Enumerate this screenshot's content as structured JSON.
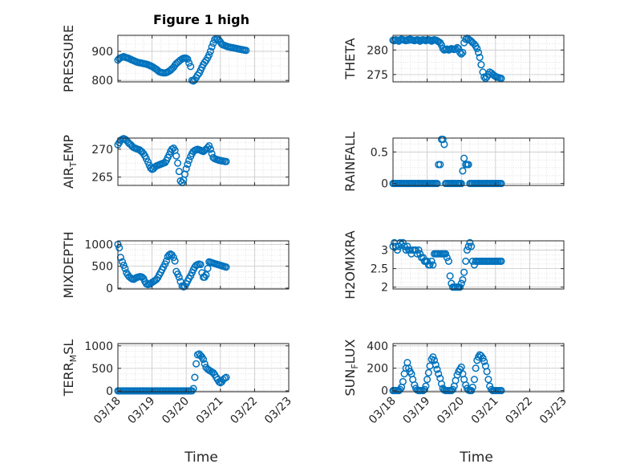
{
  "figure_title": "Figure 1 high",
  "chart_data": [
    {
      "type": "scatter",
      "ylabel": "PRESSURE",
      "ylim": [
        795,
        955
      ],
      "yticks": [
        800,
        900
      ],
      "x": [
        0.0,
        0.04,
        0.08,
        0.13,
        0.17,
        0.21,
        0.25,
        0.29,
        0.33,
        0.38,
        0.42,
        0.46,
        0.5,
        0.54,
        0.58,
        0.63,
        0.67,
        0.71,
        0.75,
        0.79,
        0.83,
        0.88,
        0.92,
        0.96,
        1.0,
        1.04,
        1.08,
        1.13,
        1.17,
        1.21,
        1.25,
        1.29,
        1.33,
        1.38,
        1.42,
        1.46,
        1.5,
        1.54,
        1.58,
        1.63,
        1.67,
        1.71,
        1.75,
        1.79,
        1.83,
        1.88,
        1.92,
        1.96,
        2.0,
        2.04,
        2.08,
        2.13,
        2.17,
        2.21,
        2.25,
        2.29,
        2.33,
        2.38,
        2.42,
        2.46,
        2.5,
        2.54,
        2.58,
        2.63,
        2.67,
        2.71,
        2.75,
        2.79,
        2.83,
        2.88,
        2.92,
        2.96,
        3.0,
        3.04,
        3.08,
        3.13,
        3.17,
        3.21,
        3.25,
        3.29,
        3.33,
        3.38,
        3.42,
        3.46,
        3.5,
        3.54,
        3.58,
        3.63,
        3.67,
        3.71,
        3.75
      ],
      "y": [
        870,
        875,
        878,
        880,
        882,
        880,
        878,
        877,
        875,
        872,
        870,
        868,
        866,
        864,
        862,
        861,
        860,
        859,
        858,
        857,
        856,
        854,
        852,
        850,
        848,
        845,
        842,
        838,
        834,
        830,
        828,
        827,
        826,
        826,
        827,
        829,
        832,
        835,
        840,
        845,
        852,
        858,
        862,
        866,
        870,
        874,
        876,
        877,
        876,
        873,
        860,
        848,
        800,
        798,
        802,
        810,
        818,
        825,
        835,
        845,
        855,
        862,
        868,
        878,
        888,
        900,
        915,
        928,
        940,
        944,
        942,
        938,
        932,
        925,
        922,
        920,
        918,
        916,
        915,
        914,
        913,
        912,
        911,
        910,
        909,
        908,
        907,
        906,
        905,
        904,
        903
      ]
    },
    {
      "type": "scatter",
      "ylabel": "THETA",
      "ylim": [
        273.5,
        283
      ],
      "yticks": [
        275,
        280
      ],
      "x": [
        0.0,
        0.04,
        0.08,
        0.13,
        0.17,
        0.21,
        0.25,
        0.29,
        0.33,
        0.38,
        0.42,
        0.46,
        0.5,
        0.54,
        0.58,
        0.63,
        0.67,
        0.71,
        0.75,
        0.79,
        0.83,
        0.88,
        0.92,
        0.96,
        1.0,
        1.04,
        1.08,
        1.13,
        1.17,
        1.21,
        1.25,
        1.29,
        1.33,
        1.38,
        1.42,
        1.46,
        1.5,
        1.54,
        1.58,
        1.63,
        1.67,
        1.71,
        1.75,
        1.79,
        1.83,
        1.88,
        1.92,
        1.96,
        2.0,
        2.04,
        2.08,
        2.13,
        2.17,
        2.21,
        2.25,
        2.29,
        2.33,
        2.38,
        2.42,
        2.46,
        2.5,
        2.54,
        2.58,
        2.63,
        2.67,
        2.71,
        2.75,
        2.79,
        2.83,
        2.88,
        2.92,
        2.96,
        3.0,
        3.04,
        3.08,
        3.13,
        3.17
      ],
      "y": [
        282,
        281.9,
        282.1,
        282,
        281.8,
        282,
        282.2,
        282.1,
        282,
        281.9,
        282.1,
        282,
        282.2,
        282.1,
        282,
        281.9,
        282,
        282.1,
        282,
        281.8,
        282,
        282.1,
        282,
        281.9,
        282,
        282.1,
        282,
        281.8,
        282,
        282.1,
        282,
        281.9,
        281.7,
        281.5,
        281,
        280.3,
        280,
        280.1,
        280.2,
        280,
        280.1,
        280.3,
        280.2,
        280.1,
        280.2,
        280.5,
        280.3,
        279.5,
        279.2,
        279.5,
        281.5,
        282.2,
        282.4,
        282.2,
        282,
        281.8,
        281.5,
        281.2,
        280.8,
        280.3,
        279.5,
        278.5,
        277,
        275.5,
        274.5,
        274.2,
        274.5,
        275,
        275.5,
        275.3,
        275,
        274.8,
        274.6,
        274.5,
        274.4,
        274.3,
        274.2
      ]
    },
    {
      "type": "scatter",
      "ylabel": "AIR_TEMP",
      "ylim": [
        263.5,
        272
      ],
      "yticks": [
        265,
        270
      ],
      "x": [
        0.0,
        0.04,
        0.08,
        0.13,
        0.17,
        0.21,
        0.25,
        0.29,
        0.33,
        0.38,
        0.42,
        0.46,
        0.5,
        0.54,
        0.58,
        0.63,
        0.67,
        0.71,
        0.75,
        0.79,
        0.83,
        0.88,
        0.92,
        0.96,
        1.0,
        1.04,
        1.08,
        1.13,
        1.17,
        1.21,
        1.25,
        1.29,
        1.33,
        1.38,
        1.42,
        1.46,
        1.5,
        1.54,
        1.58,
        1.63,
        1.67,
        1.71,
        1.75,
        1.79,
        1.83,
        1.88,
        1.92,
        1.96,
        2.0,
        2.04,
        2.08,
        2.13,
        2.17,
        2.21,
        2.25,
        2.29,
        2.33,
        2.38,
        2.42,
        2.46,
        2.5,
        2.54,
        2.58,
        2.63,
        2.67,
        2.71,
        2.75,
        2.79,
        2.83,
        2.88,
        2.92,
        2.96,
        3.0,
        3.04,
        3.08,
        3.13,
        3.17
      ],
      "y": [
        270.8,
        271.2,
        271.6,
        271.8,
        271.9,
        271.8,
        271.6,
        271.3,
        271,
        270.8,
        270.5,
        270.3,
        270.2,
        270.1,
        270,
        269.9,
        269.7,
        269.5,
        269.2,
        268.8,
        268.3,
        267.7,
        267.1,
        266.6,
        266.4,
        266.5,
        266.8,
        267,
        267.1,
        267.2,
        267.3,
        267.4,
        267.5,
        267.6,
        268,
        268.5,
        269,
        269.6,
        270,
        270.2,
        269.8,
        268.8,
        267.5,
        266,
        264.3,
        264,
        264.5,
        265.5,
        266.5,
        267.3,
        268,
        268.7,
        269.2,
        269.6,
        269.8,
        269.9,
        270,
        269.9,
        269.8,
        269.7,
        269.6,
        269.8,
        270,
        270.3,
        270.6,
        270,
        269.2,
        268.5,
        268.3,
        268.2,
        268.1,
        268,
        268,
        267.9,
        267.9,
        267.8,
        267.8
      ]
    },
    {
      "type": "scatter",
      "ylabel": "RAINFALL",
      "ylim": [
        -0.03,
        0.72
      ],
      "yticks": [
        0,
        0.5
      ],
      "x": [
        0.0,
        0.04,
        0.08,
        0.13,
        0.17,
        0.21,
        0.25,
        0.29,
        0.33,
        0.38,
        0.42,
        0.46,
        0.5,
        0.54,
        0.58,
        0.63,
        0.67,
        0.71,
        0.75,
        0.79,
        0.83,
        0.88,
        0.92,
        0.96,
        1.0,
        1.04,
        1.08,
        1.13,
        1.17,
        1.21,
        1.25,
        1.29,
        1.33,
        1.38,
        1.42,
        1.46,
        1.5,
        1.54,
        1.58,
        1.63,
        1.67,
        1.71,
        1.75,
        1.79,
        1.83,
        1.88,
        1.92,
        1.96,
        2.0,
        2.04,
        2.08,
        2.13,
        2.17,
        2.21,
        2.25,
        2.29,
        2.33,
        2.38,
        2.42,
        2.46,
        2.5,
        2.54,
        2.58,
        2.63,
        2.67,
        2.71,
        2.75,
        2.79,
        2.83,
        2.88,
        2.92,
        2.96,
        3.0,
        3.04,
        3.08,
        3.13,
        3.17
      ],
      "y": [
        0,
        0,
        0,
        0,
        0,
        0,
        0,
        0,
        0,
        0,
        0,
        0,
        0,
        0,
        0,
        0,
        0,
        0,
        0,
        0,
        0,
        0,
        0,
        0,
        0,
        0,
        0,
        0,
        0,
        0,
        0,
        0,
        0.3,
        0.3,
        0.7,
        0.7,
        0.62,
        0,
        0,
        0,
        0,
        0,
        0,
        0,
        0,
        0,
        0,
        0,
        0,
        0.2,
        0.4,
        0.3,
        0.3,
        0.3,
        0,
        0,
        0,
        0,
        0,
        0,
        0,
        0,
        0,
        0,
        0,
        0,
        0,
        0,
        0,
        0,
        0,
        0,
        0,
        0,
        0,
        0,
        0
      ]
    },
    {
      "type": "scatter",
      "ylabel": "MIXDEPTH",
      "ylim": [
        -20,
        1080
      ],
      "yticks": [
        0,
        500,
        1000
      ],
      "x": [
        0.0,
        0.04,
        0.08,
        0.13,
        0.17,
        0.21,
        0.25,
        0.29,
        0.33,
        0.38,
        0.42,
        0.46,
        0.5,
        0.54,
        0.58,
        0.63,
        0.67,
        0.71,
        0.75,
        0.79,
        0.83,
        0.88,
        0.92,
        0.96,
        1.0,
        1.04,
        1.08,
        1.13,
        1.17,
        1.21,
        1.25,
        1.29,
        1.33,
        1.38,
        1.42,
        1.46,
        1.5,
        1.54,
        1.58,
        1.63,
        1.67,
        1.71,
        1.75,
        1.79,
        1.83,
        1.88,
        1.92,
        1.96,
        2.0,
        2.04,
        2.08,
        2.13,
        2.17,
        2.21,
        2.25,
        2.29,
        2.33,
        2.38,
        2.42,
        2.46,
        2.5,
        2.54,
        2.58,
        2.63,
        2.67,
        2.71,
        2.75,
        2.79,
        2.83,
        2.88,
        2.92,
        2.96,
        3.0,
        3.04,
        3.08,
        3.13,
        3.17
      ],
      "y": [
        1000,
        920,
        700,
        600,
        520,
        450,
        350,
        300,
        260,
        230,
        210,
        200,
        220,
        240,
        250,
        260,
        260,
        250,
        220,
        150,
        100,
        80,
        90,
        110,
        130,
        150,
        170,
        200,
        240,
        300,
        360,
        420,
        480,
        550,
        620,
        720,
        760,
        780,
        760,
        700,
        620,
        380,
        320,
        250,
        150,
        50,
        30,
        40,
        100,
        160,
        220,
        280,
        350,
        420,
        480,
        520,
        540,
        550,
        540,
        350,
        250,
        250,
        300,
        450,
        600,
        590,
        580,
        570,
        560,
        550,
        540,
        530,
        520,
        510,
        500,
        490,
        480
      ]
    },
    {
      "type": "scatter",
      "ylabel": "H2OMIXRA",
      "ylim": [
        1.95,
        3.25
      ],
      "yticks": [
        2,
        2.5,
        3
      ],
      "x": [
        0.0,
        0.04,
        0.08,
        0.13,
        0.17,
        0.21,
        0.25,
        0.29,
        0.33,
        0.38,
        0.42,
        0.46,
        0.5,
        0.54,
        0.58,
        0.63,
        0.67,
        0.71,
        0.75,
        0.79,
        0.83,
        0.88,
        0.92,
        0.96,
        1.0,
        1.04,
        1.08,
        1.13,
        1.17,
        1.21,
        1.25,
        1.29,
        1.33,
        1.38,
        1.42,
        1.46,
        1.5,
        1.54,
        1.58,
        1.63,
        1.67,
        1.71,
        1.75,
        1.79,
        1.83,
        1.88,
        1.92,
        1.96,
        2.0,
        2.04,
        2.08,
        2.13,
        2.17,
        2.21,
        2.25,
        2.29,
        2.33,
        2.38,
        2.42,
        2.46,
        2.5,
        2.54,
        2.58,
        2.63,
        2.67,
        2.71,
        2.75,
        2.79,
        2.83,
        2.88,
        2.92,
        2.96,
        3.0,
        3.04,
        3.08,
        3.13,
        3.17
      ],
      "y": [
        3.1,
        3.2,
        3.1,
        3.0,
        3.1,
        3.2,
        3.15,
        3.2,
        3.1,
        3.0,
        3.1,
        3.0,
        3.0,
        2.9,
        3.0,
        3.0,
        3.0,
        2.9,
        3.0,
        2.9,
        2.8,
        2.8,
        2.7,
        2.7,
        2.7,
        2.6,
        2.6,
        2.7,
        2.6,
        2.9,
        2.9,
        2.9,
        2.9,
        2.9,
        2.9,
        2.9,
        2.9,
        2.9,
        2.8,
        2.7,
        2.3,
        2.1,
        2.0,
        2.0,
        2.0,
        2.0,
        2.0,
        2.0,
        2.1,
        2.2,
        2.4,
        2.7,
        3.0,
        3.1,
        3.2,
        3.1,
        2.7,
        2.6,
        2.7,
        2.7,
        2.7,
        2.7,
        2.7,
        2.7,
        2.7,
        2.7,
        2.7,
        2.7,
        2.7,
        2.7,
        2.7,
        2.7,
        2.7,
        2.7,
        2.7,
        2.7,
        2.7
      ]
    },
    {
      "type": "scatter",
      "ylabel": "TERR_MSL",
      "ylim": [
        -20,
        1050
      ],
      "yticks": [
        0,
        500,
        1000
      ],
      "x": [
        0.0,
        0.04,
        0.08,
        0.13,
        0.17,
        0.21,
        0.25,
        0.29,
        0.33,
        0.38,
        0.42,
        0.46,
        0.5,
        0.54,
        0.58,
        0.63,
        0.67,
        0.71,
        0.75,
        0.79,
        0.83,
        0.88,
        0.92,
        0.96,
        1.0,
        1.04,
        1.08,
        1.13,
        1.17,
        1.21,
        1.25,
        1.29,
        1.33,
        1.38,
        1.42,
        1.46,
        1.5,
        1.54,
        1.58,
        1.63,
        1.67,
        1.71,
        1.75,
        1.79,
        1.83,
        1.88,
        1.92,
        1.96,
        2.0,
        2.04,
        2.08,
        2.13,
        2.17,
        2.21,
        2.25,
        2.29,
        2.33,
        2.38,
        2.42,
        2.46,
        2.5,
        2.54,
        2.58,
        2.63,
        2.67,
        2.71,
        2.75,
        2.79,
        2.83,
        2.88,
        2.92,
        2.96,
        3.0,
        3.04,
        3.08,
        3.13,
        3.17
      ],
      "y": [
        0,
        0,
        0,
        0,
        0,
        0,
        0,
        0,
        0,
        0,
        0,
        0,
        0,
        0,
        0,
        0,
        0,
        0,
        0,
        0,
        0,
        0,
        0,
        0,
        0,
        0,
        0,
        0,
        0,
        0,
        0,
        0,
        0,
        0,
        0,
        0,
        0,
        0,
        0,
        0,
        0,
        0,
        0,
        0,
        0,
        0,
        0,
        0,
        0,
        0,
        0,
        0,
        0,
        50,
        300,
        600,
        800,
        820,
        780,
        750,
        700,
        600,
        520,
        480,
        460,
        440,
        420,
        400,
        360,
        300,
        250,
        200,
        180,
        200,
        250,
        280,
        300
      ]
    },
    {
      "type": "scatter",
      "ylabel": "SUN_FLUX",
      "ylim": [
        -10,
        420
      ],
      "yticks": [
        0,
        200,
        400
      ],
      "x": [
        0.0,
        0.04,
        0.08,
        0.13,
        0.17,
        0.21,
        0.25,
        0.29,
        0.33,
        0.38,
        0.42,
        0.46,
        0.5,
        0.54,
        0.58,
        0.63,
        0.67,
        0.71,
        0.75,
        0.79,
        0.83,
        0.88,
        0.92,
        0.96,
        1.0,
        1.04,
        1.08,
        1.13,
        1.17,
        1.21,
        1.25,
        1.29,
        1.33,
        1.38,
        1.42,
        1.46,
        1.5,
        1.54,
        1.58,
        1.63,
        1.67,
        1.71,
        1.75,
        1.79,
        1.83,
        1.88,
        1.92,
        1.96,
        2.0,
        2.04,
        2.08,
        2.13,
        2.17,
        2.21,
        2.25,
        2.29,
        2.33,
        2.38,
        2.42,
        2.46,
        2.5,
        2.54,
        2.58,
        2.63,
        2.67,
        2.71,
        2.75,
        2.79,
        2.83,
        2.88,
        2.92,
        2.96,
        3.0,
        3.04,
        3.08,
        3.13,
        3.17
      ],
      "y": [
        0,
        0,
        0,
        0,
        0,
        10,
        30,
        80,
        150,
        200,
        250,
        200,
        170,
        150,
        100,
        50,
        20,
        5,
        0,
        0,
        0,
        0,
        10,
        40,
        100,
        160,
        220,
        280,
        300,
        270,
        230,
        190,
        150,
        110,
        60,
        20,
        5,
        0,
        0,
        0,
        0,
        0,
        10,
        40,
        90,
        140,
        170,
        190,
        210,
        150,
        100,
        50,
        20,
        5,
        0,
        0,
        30,
        100,
        200,
        270,
        300,
        320,
        310,
        290,
        260,
        220,
        170,
        100,
        40,
        10,
        0,
        0,
        0,
        0,
        0,
        0,
        0
      ]
    }
  ],
  "xlim": [
    0,
    5
  ],
  "xtick_values": [
    0,
    1,
    2,
    3,
    4,
    5
  ],
  "xtick_labels": [
    "03/18",
    "03/19",
    "03/20",
    "03/21",
    "03/22",
    "03/23"
  ],
  "xlabel": "Time",
  "marker_color": "#0072BD"
}
